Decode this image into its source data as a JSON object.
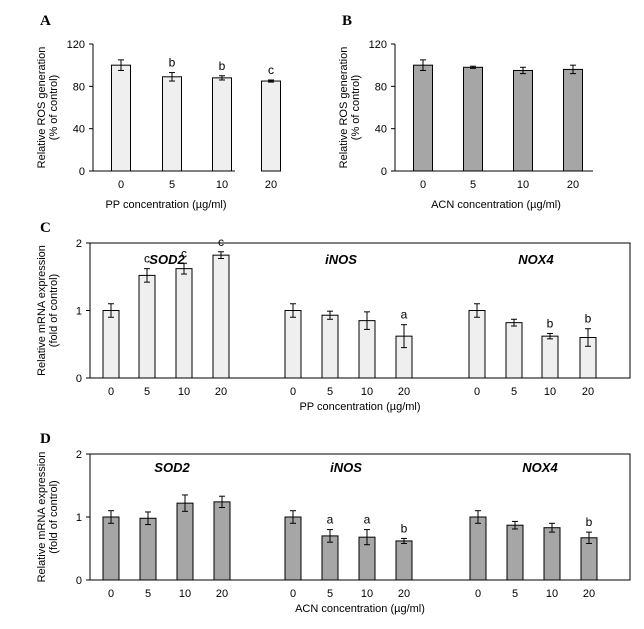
{
  "colors": {
    "pp_fill": "#efefef",
    "acn_fill": "#a6a6a6",
    "stroke": "#000000"
  },
  "chart_data": [
    {
      "panel": "A",
      "type": "bar",
      "categories": [
        "0",
        "5",
        "10",
        "20"
      ],
      "series": [
        {
          "values": [
            100,
            89,
            88,
            85
          ],
          "errors": [
            5,
            4,
            2,
            1
          ],
          "sig": [
            "",
            "b",
            "b",
            "c"
          ]
        }
      ],
      "xlabel": "PP concentration (µg/ml)",
      "ylabel": [
        "Relative ROS generation",
        "(% of control)"
      ],
      "ylim": [
        0,
        120
      ],
      "yticks": [
        0,
        40,
        80,
        120
      ],
      "fill": "pp"
    },
    {
      "panel": "B",
      "type": "bar",
      "categories": [
        "0",
        "5",
        "10",
        "20"
      ],
      "series": [
        {
          "values": [
            100,
            98,
            95,
            96
          ],
          "errors": [
            5,
            1,
            3,
            4
          ],
          "sig": [
            "",
            "",
            "",
            ""
          ]
        }
      ],
      "xlabel": "ACN concentration (µg/ml)",
      "ylabel": [
        "Relative ROS generation",
        "(% of control)"
      ],
      "ylim": [
        0,
        120
      ],
      "yticks": [
        0,
        40,
        80,
        120
      ],
      "fill": "acn"
    },
    {
      "panel": "C",
      "type": "bar",
      "groups": [
        {
          "name": "SOD2",
          "categories": [
            "0",
            "5",
            "10",
            "20"
          ],
          "values": [
            1.0,
            1.52,
            1.62,
            1.82
          ],
          "errors": [
            0.1,
            0.1,
            0.08,
            0.05
          ],
          "sig": [
            "",
            "c",
            "c",
            "c"
          ]
        },
        {
          "name": "iNOS",
          "categories": [
            "0",
            "5",
            "10",
            "20"
          ],
          "values": [
            1.0,
            0.93,
            0.85,
            0.62
          ],
          "errors": [
            0.1,
            0.06,
            0.13,
            0.17
          ],
          "sig": [
            "",
            "",
            "",
            "a"
          ]
        },
        {
          "name": "NOX4",
          "categories": [
            "0",
            "5",
            "10",
            "20"
          ],
          "values": [
            1.0,
            0.82,
            0.62,
            0.6
          ],
          "errors": [
            0.1,
            0.05,
            0.04,
            0.13
          ],
          "sig": [
            "",
            "",
            "b",
            "b"
          ]
        }
      ],
      "xlabel": "PP concentration (µg/ml)",
      "ylabel": [
        "Relative mRNA expression",
        "(fold of control)"
      ],
      "ylim": [
        0,
        2
      ],
      "yticks": [
        0,
        1,
        2
      ],
      "fill": "pp"
    },
    {
      "panel": "D",
      "type": "bar",
      "groups": [
        {
          "name": "SOD2",
          "categories": [
            "0",
            "5",
            "10",
            "20"
          ],
          "values": [
            1.0,
            0.98,
            1.22,
            1.24
          ],
          "errors": [
            0.1,
            0.1,
            0.13,
            0.09
          ],
          "sig": [
            "",
            "",
            "",
            ""
          ]
        },
        {
          "name": "iNOS",
          "categories": [
            "0",
            "5",
            "10",
            "20"
          ],
          "values": [
            1.0,
            0.7,
            0.68,
            0.62
          ],
          "errors": [
            0.1,
            0.1,
            0.12,
            0.04
          ],
          "sig": [
            "",
            "a",
            "a",
            "b"
          ]
        },
        {
          "name": "NOX4",
          "categories": [
            "0",
            "5",
            "10",
            "20"
          ],
          "values": [
            1.0,
            0.87,
            0.83,
            0.67
          ],
          "errors": [
            0.1,
            0.06,
            0.07,
            0.09
          ],
          "sig": [
            "",
            "",
            "",
            "b"
          ]
        }
      ],
      "xlabel": "ACN concentration (µg/ml)",
      "ylabel": [
        "Relative mRNA expression",
        "(fold of control)"
      ],
      "ylim": [
        0,
        2
      ],
      "yticks": [
        0,
        1,
        2
      ],
      "fill": "acn"
    }
  ]
}
